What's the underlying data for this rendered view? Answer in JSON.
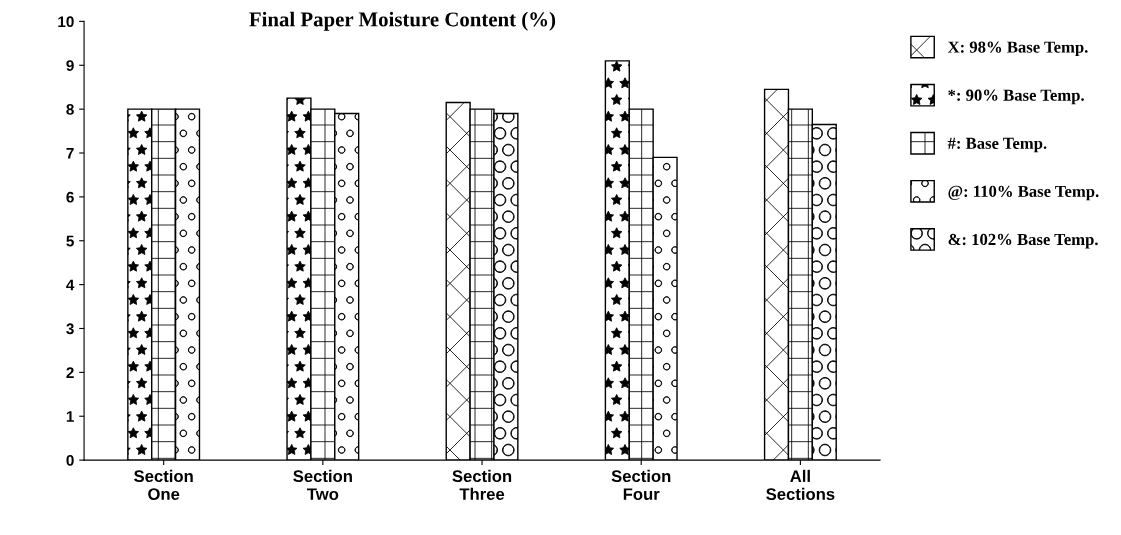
{
  "chart_data": {
    "type": "bar",
    "title": "Final Paper Moisture Content (%)",
    "categories": [
      "Section\nOne",
      "Section\nTwo",
      "Section\nThree",
      "Section\nFour",
      "All\nSections"
    ],
    "series": [
      {
        "name": "X: 98% Base Temp.",
        "values": [
          null,
          null,
          8.15,
          null,
          8.45
        ]
      },
      {
        "name": "*: 90% Base Temp.",
        "values": [
          8.0,
          8.25,
          null,
          9.1,
          null
        ]
      },
      {
        "name": "#: Base Temp.",
        "values": [
          8.0,
          8.0,
          8.0,
          8.0,
          8.0
        ]
      },
      {
        "name": "@: 110% Base Temp.",
        "values": [
          8.0,
          7.9,
          null,
          6.9,
          null
        ]
      },
      {
        "name": "&: 102% Base Temp.",
        "values": [
          null,
          null,
          7.9,
          null,
          7.65
        ]
      }
    ],
    "ylim": [
      0,
      10
    ],
    "yticks": [
      0,
      1,
      2,
      3,
      4,
      5,
      6,
      7,
      8,
      9,
      10
    ],
    "grid": false,
    "legend": "right"
  }
}
